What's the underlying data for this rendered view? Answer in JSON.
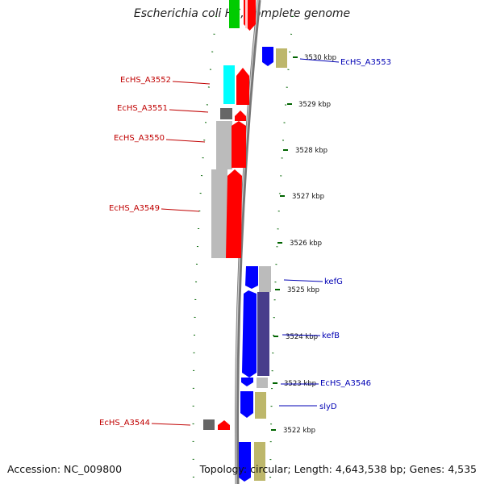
{
  "title": "Escherichia coli HS, complete genome",
  "accession": "Accession: NC_009800",
  "topology": "Topology: circular; Length: 4,643,538 bp; Genes: 4,535",
  "colors": {
    "forward_gene": "#ff0000",
    "reverse_gene": "#0000ff",
    "cyan_gene": "#00ffff",
    "grey_gene": "#bbbbbb",
    "dark_grey_gene": "#666666",
    "khaki_gene": "#bdb76b",
    "indigo_gene": "#483d8b",
    "green_gene": "#00cc00",
    "backbone": "#777777",
    "ticks": "#006400",
    "left_label": "#c00000",
    "right_label": "#0000b4"
  },
  "ticks": [
    {
      "label": "3530 kbp"
    },
    {
      "label": "3529 kbp"
    },
    {
      "label": "3528 kbp"
    },
    {
      "label": "3527 kbp"
    },
    {
      "label": "3526 kbp"
    },
    {
      "label": "3525 kbp"
    },
    {
      "label": "3524 kbp"
    },
    {
      "label": "3523 kbp"
    },
    {
      "label": "3522 kbp"
    }
  ],
  "labels_left": [
    {
      "text": "EcHS_A3552"
    },
    {
      "text": "EcHS_A3551"
    },
    {
      "text": "EcHS_A3550"
    },
    {
      "text": "EcHS_A3549"
    },
    {
      "text": "EcHS_A3544"
    }
  ],
  "labels_right": [
    {
      "text": "EcHS_A3553"
    },
    {
      "text": "kefG"
    },
    {
      "text": "kefB"
    },
    {
      "text": "EcHS_A3546"
    },
    {
      "text": "slyD"
    }
  ]
}
